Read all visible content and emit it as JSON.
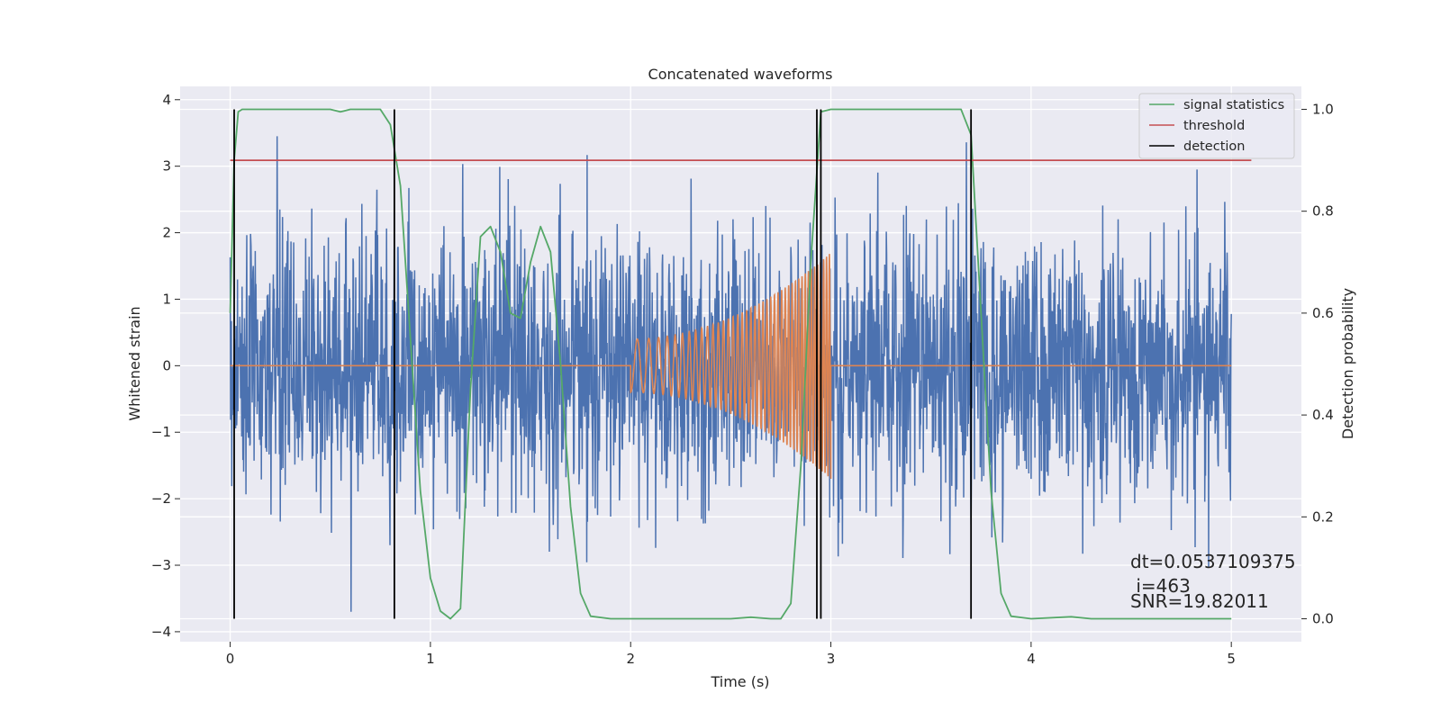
{
  "chart_data": {
    "type": "line",
    "title": "Concatenated waveforms",
    "xlabel": "Time (s)",
    "ylabel": "Whitened strain",
    "ylabel_right": "Detection probability",
    "xlim": [
      -0.25,
      5.35
    ],
    "ylim": [
      -4.15,
      4.2
    ],
    "ylim_right": [
      -0.045,
      1.045
    ],
    "xticks": [
      0,
      1,
      2,
      3,
      4,
      5
    ],
    "yticks": [
      -4,
      -3,
      -2,
      -1,
      0,
      1,
      2,
      3,
      4
    ],
    "yticks_right": [
      0.0,
      0.2,
      0.4,
      0.6,
      0.8,
      1.0
    ],
    "x_tick_labels": [
      "0",
      "1",
      "2",
      "3",
      "4",
      "5"
    ],
    "y_tick_labels": [
      "−4",
      "−3",
      "−2",
      "−1",
      "0",
      "1",
      "2",
      "3",
      "4"
    ],
    "y_right_tick_labels": [
      "0.0",
      "0.2",
      "0.4",
      "0.6",
      "0.8",
      "1.0"
    ],
    "grid": true,
    "legend_position": "top-right",
    "legend": [
      {
        "label": "signal statistics",
        "color": "#55a868"
      },
      {
        "label": "threshold",
        "color": "#c44e52"
      },
      {
        "label": "detection",
        "color": "#000000"
      }
    ],
    "series": [
      {
        "name": "",
        "axis": "left",
        "color": "#4c72b0",
        "kind": "noise",
        "x_range": [
          0,
          5
        ],
        "std": 1.0,
        "min": -3.7,
        "max": 3.45
      },
      {
        "name": "",
        "axis": "left",
        "color": "#dd8452",
        "kind": "chirp",
        "x_range": [
          2,
          3
        ],
        "amplitude_start": 0.4,
        "amplitude_end": 1.7,
        "value_outside": 0
      },
      {
        "name": "signal statistics",
        "axis": "right",
        "color": "#55a868",
        "x": [
          0.0,
          0.02,
          0.04,
          0.06,
          0.1,
          0.5,
          0.55,
          0.6,
          0.75,
          0.8,
          0.85,
          0.9,
          0.95,
          1.0,
          1.05,
          1.1,
          1.15,
          1.2,
          1.25,
          1.3,
          1.35,
          1.4,
          1.45,
          1.5,
          1.55,
          1.6,
          1.65,
          1.7,
          1.75,
          1.8,
          1.9,
          2.0,
          2.5,
          2.6,
          2.7,
          2.75,
          2.8,
          2.85,
          2.9,
          2.95,
          3.0,
          3.5,
          3.65,
          3.7,
          3.75,
          3.8,
          3.85,
          3.9,
          4.0,
          4.2,
          4.3,
          5.0
        ],
        "y": [
          0.6,
          0.9,
          0.995,
          1.0,
          1.0,
          1.0,
          0.995,
          1.0,
          1.0,
          0.97,
          0.85,
          0.55,
          0.25,
          0.08,
          0.015,
          0.0,
          0.02,
          0.45,
          0.75,
          0.77,
          0.72,
          0.6,
          0.59,
          0.7,
          0.77,
          0.72,
          0.5,
          0.22,
          0.05,
          0.005,
          0.0,
          0.0,
          0.0,
          0.003,
          0.0,
          0.0,
          0.03,
          0.3,
          0.7,
          0.995,
          1.0,
          1.0,
          1.0,
          0.95,
          0.6,
          0.25,
          0.05,
          0.005,
          0.0,
          0.004,
          0.0,
          0.0
        ]
      },
      {
        "name": "threshold",
        "axis": "right",
        "color": "#c44e52",
        "x": [
          0,
          5.1
        ],
        "y": [
          0.9,
          0.9
        ]
      },
      {
        "name": "detection",
        "axis": "right",
        "color": "#000000",
        "kind": "vlines",
        "x": [
          0.02,
          0.82,
          2.93,
          2.95,
          3.7
        ],
        "y_range": [
          0.0,
          1.0
        ]
      }
    ],
    "annotations": [
      {
        "text": "dt=0.0537109375",
        "x": 4.5,
        "y": -2.95
      },
      {
        "text": " i=463",
        "x": 4.5,
        "y": -3.33
      },
      {
        "text": "SNR=19.82011",
        "x": 4.5,
        "y": -3.55
      }
    ]
  }
}
